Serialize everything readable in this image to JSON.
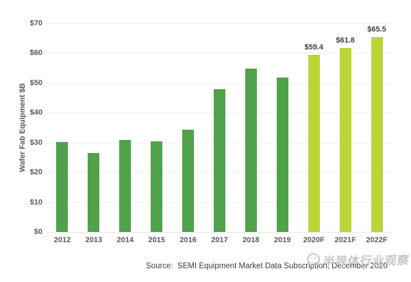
{
  "chart_data": {
    "type": "bar",
    "title": "",
    "xlabel": "",
    "ylabel": "Wafer Fab Equipment $B",
    "ylim": [
      0,
      70
    ],
    "ytick_step": 10,
    "ytick_labels": [
      "$0",
      "$10",
      "$20",
      "$30",
      "$40",
      "$50",
      "$60",
      "$70"
    ],
    "grid": true,
    "legend": "none",
    "categories": [
      "2012",
      "2013",
      "2014",
      "2015",
      "2016",
      "2017",
      "2018",
      "2019",
      "2020F",
      "2021F",
      "2022F"
    ],
    "values": [
      30.2,
      26.5,
      30.9,
      30.5,
      34.3,
      48.0,
      54.8,
      51.7,
      59.4,
      61.8,
      65.5
    ],
    "bar_labels": [
      null,
      null,
      null,
      null,
      null,
      null,
      null,
      null,
      "$59.4",
      "$61.8",
      "$65.5"
    ],
    "forecast_start_index": 8,
    "colors": {
      "actual_bar": "#4fa14a",
      "forecast_bar": "#bcd435",
      "gridline": "#efefef",
      "axis_text": "#595959",
      "bar_label_text": "#404040"
    }
  },
  "source": {
    "text": "Source:  SEMI Equipment Market Data Subscription, December 2020"
  },
  "watermark": {
    "icon": "circle-face-logo",
    "text": "半导体行业观察",
    "color": "#c6c6c6"
  }
}
